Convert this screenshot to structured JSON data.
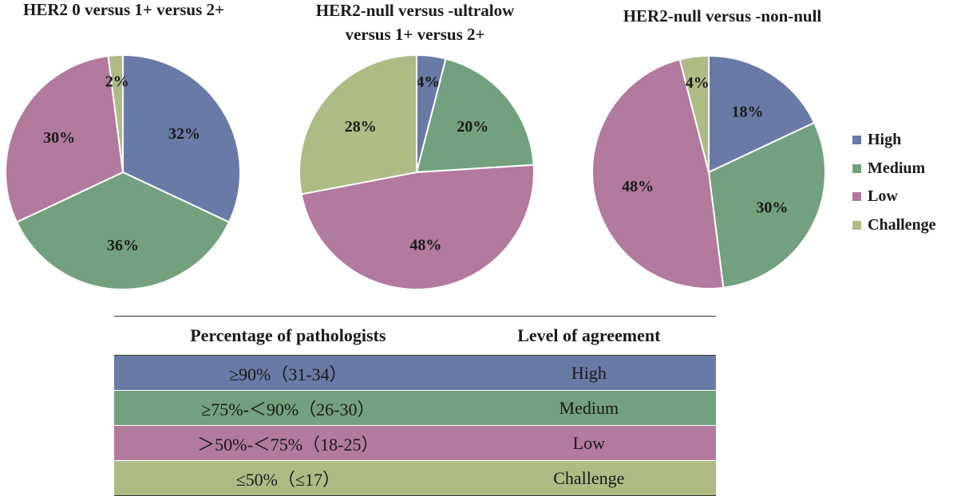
{
  "colors": {
    "High": "#6a7aa6",
    "Medium": "#73a07e",
    "Low": "#b27a9d",
    "Challenge": "#adbb85"
  },
  "chart_data": [
    {
      "type": "pie",
      "title": "HER2 0 versus 1+ versus 2+",
      "categories": [
        "High",
        "Medium",
        "Low",
        "Challenge"
      ],
      "values": [
        32,
        36,
        30,
        2
      ],
      "labels": [
        "32%",
        "36%",
        "30%",
        "2%"
      ]
    },
    {
      "type": "pie",
      "title": "HER2-null versus -ultralow versus 1+ versus 2+",
      "title_lines": [
        "HER2-null versus -ultralow",
        "versus 1+ versus 2+"
      ],
      "categories": [
        "High",
        "Medium",
        "Low",
        "Challenge"
      ],
      "values": [
        4,
        20,
        48,
        28
      ],
      "labels": [
        "4%",
        "20%",
        "48%",
        "28%"
      ]
    },
    {
      "type": "pie",
      "title": "HER2-null versus -non-null",
      "categories": [
        "High",
        "Medium",
        "Low",
        "Challenge"
      ],
      "values": [
        18,
        30,
        48,
        4
      ],
      "labels": [
        "18%",
        "30%",
        "48%",
        "4%"
      ]
    }
  ],
  "legend": [
    "High",
    "Medium",
    "Low",
    "Challenge"
  ],
  "table": {
    "headers": [
      "Percentage of pathologists",
      "Level of agreement"
    ],
    "rows": [
      {
        "percentage": "≥90%（31-34）",
        "level": "High"
      },
      {
        "percentage": "≥75%-＜90%（26-30）",
        "level": "Medium"
      },
      {
        "percentage": "＞50%-＜75%（18-25）",
        "level": "Low"
      },
      {
        "percentage": "≤50%（≤17）",
        "level": "Challenge"
      }
    ]
  }
}
